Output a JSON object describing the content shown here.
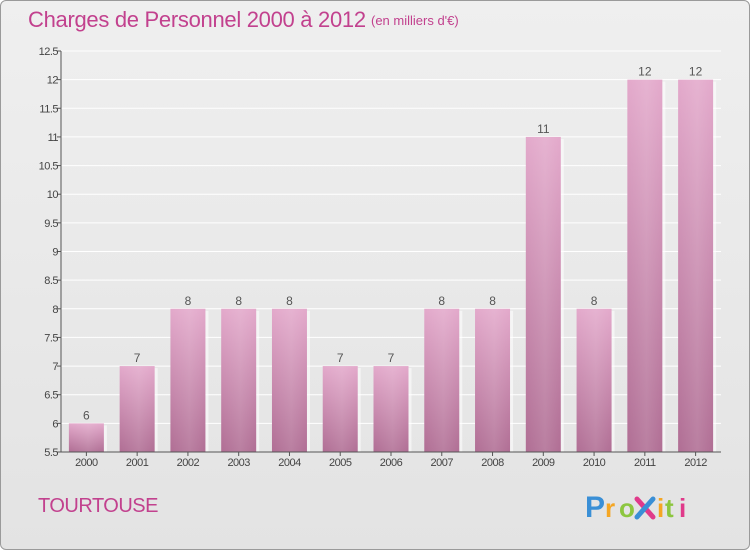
{
  "header": {
    "title": "Charges de Personnel 2000 à 2012",
    "subtitle": "(en milliers d'€)"
  },
  "footer": {
    "commune": "TOURTOUSE",
    "brand": "Proxiti"
  },
  "colors": {
    "title": "#c2418e",
    "bar_top": "#e3a9cb",
    "bar_bottom": "#b06e94",
    "axis": "#555555",
    "grid": "#ffffff"
  },
  "chart_data": {
    "type": "bar",
    "title": "Charges de Personnel 2000 à 2012",
    "subtitle": "(en milliers d'€)",
    "categories": [
      "2000",
      "2001",
      "2002",
      "2003",
      "2004",
      "2005",
      "2006",
      "2007",
      "2008",
      "2009",
      "2010",
      "2011",
      "2012"
    ],
    "values": [
      6,
      7,
      8,
      8,
      8,
      7,
      7,
      8,
      8,
      11,
      8,
      12,
      12
    ],
    "data_labels": [
      "6",
      "7",
      "8",
      "8",
      "8",
      "7",
      "7",
      "8",
      "8",
      "11",
      "8",
      "12",
      "12"
    ],
    "ylim": [
      5.5,
      12.5
    ],
    "yticks": [
      5.5,
      6,
      6.5,
      7,
      7.5,
      8,
      8.5,
      9,
      9.5,
      10,
      10.5,
      11,
      11.5,
      12,
      12.5
    ],
    "ytick_labels": [
      "5.5",
      "6",
      "6.5",
      "7",
      "7.5",
      "8",
      "8.5",
      "9",
      "9.5",
      "10",
      "10.5",
      "11",
      "11.5",
      "12",
      "12.5"
    ],
    "grid": true,
    "legend": "none",
    "xlabel": "",
    "ylabel": ""
  }
}
